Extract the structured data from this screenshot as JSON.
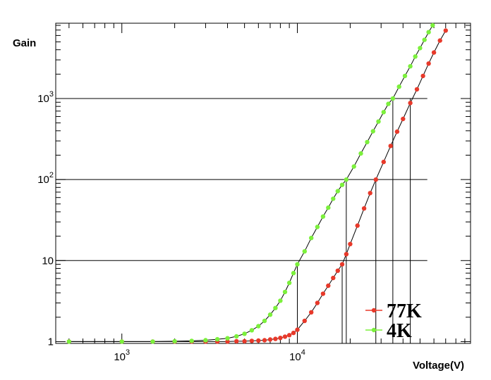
{
  "chart_data": {
    "type": "line",
    "xlabel": "Voltage(V)",
    "ylabel": "Gain",
    "xscale": "log",
    "yscale": "log",
    "xlim": [
      420,
      97000
    ],
    "ylim": [
      0.95,
      8500
    ],
    "grid": "y",
    "legend_position": "bottom-right",
    "x_ticks": [
      {
        "value": 1000,
        "base": "10",
        "exp": "3"
      },
      {
        "value": 10000,
        "base": "10",
        "exp": "4"
      }
    ],
    "y_ticks": [
      {
        "value": 1,
        "base": "1",
        "exp": ""
      },
      {
        "value": 10,
        "base": "10",
        "exp": ""
      },
      {
        "value": 100,
        "base": "10",
        "exp": "2"
      },
      {
        "value": 1000,
        "base": "10",
        "exp": "3"
      }
    ],
    "series": [
      {
        "name": "77K",
        "color": "#e8392a",
        "points": [
          [
            500,
            1.0
          ],
          [
            1000,
            1.0
          ],
          [
            1500,
            1.0
          ],
          [
            2000,
            1.0
          ],
          [
            2500,
            1.0
          ],
          [
            3000,
            1.0
          ],
          [
            3500,
            1.0
          ],
          [
            4000,
            1.0
          ],
          [
            4500,
            1.01
          ],
          [
            5000,
            1.01
          ],
          [
            5500,
            1.02
          ],
          [
            6000,
            1.03
          ],
          [
            6500,
            1.04
          ],
          [
            7000,
            1.06
          ],
          [
            7500,
            1.08
          ],
          [
            8000,
            1.11
          ],
          [
            8500,
            1.15
          ],
          [
            9000,
            1.2
          ],
          [
            9500,
            1.28
          ],
          [
            10000,
            1.4
          ],
          [
            11000,
            1.8
          ],
          [
            12000,
            2.3
          ],
          [
            13000,
            3.0
          ],
          [
            14000,
            3.9
          ],
          [
            15000,
            4.9
          ],
          [
            16000,
            6.1
          ],
          [
            17000,
            7.5
          ],
          [
            18000,
            9.0
          ],
          [
            19000,
            12.0
          ],
          [
            20000,
            16.0
          ],
          [
            22000,
            27.0
          ],
          [
            24000,
            44.0
          ],
          [
            26000,
            68.0
          ],
          [
            28000,
            100.0
          ],
          [
            31000,
            165.0
          ],
          [
            34000,
            260.0
          ],
          [
            37000,
            390.0
          ],
          [
            40000,
            560.0
          ],
          [
            44000,
            880.0
          ],
          [
            48000,
            1300.0
          ],
          [
            52000,
            1900.0
          ],
          [
            56000,
            2700.0
          ],
          [
            60000,
            3700.0
          ],
          [
            65000,
            5200.0
          ],
          [
            70000,
            6900.0
          ]
        ]
      },
      {
        "name": "4K",
        "color": "#7cf03c",
        "points": [
          [
            500,
            1.0
          ],
          [
            1000,
            1.0
          ],
          [
            1500,
            1.0
          ],
          [
            2000,
            1.01
          ],
          [
            2500,
            1.02
          ],
          [
            3000,
            1.04
          ],
          [
            3500,
            1.07
          ],
          [
            4000,
            1.1
          ],
          [
            4500,
            1.16
          ],
          [
            5000,
            1.25
          ],
          [
            5500,
            1.38
          ],
          [
            6000,
            1.55
          ],
          [
            6500,
            1.8
          ],
          [
            7000,
            2.15
          ],
          [
            7500,
            2.6
          ],
          [
            8000,
            3.2
          ],
          [
            8500,
            4.1
          ],
          [
            9000,
            5.3
          ],
          [
            9500,
            7.0
          ],
          [
            10000,
            9.0
          ],
          [
            11000,
            13.0
          ],
          [
            12000,
            19.0
          ],
          [
            13000,
            26.0
          ],
          [
            14000,
            35.0
          ],
          [
            15000,
            45.0
          ],
          [
            16000,
            58.0
          ],
          [
            17000,
            72.0
          ],
          [
            18000,
            86.0
          ],
          [
            19000,
            100.0
          ],
          [
            21000,
            145.0
          ],
          [
            23000,
            210.0
          ],
          [
            25000,
            290.0
          ],
          [
            27000,
            395.0
          ],
          [
            29000,
            520.0
          ],
          [
            31000,
            680.0
          ],
          [
            33000,
            860.0
          ],
          [
            35000,
            1000.0
          ],
          [
            38000,
            1400.0
          ],
          [
            41000,
            1900.0
          ],
          [
            44000,
            2500.0
          ],
          [
            47000,
            3300.0
          ],
          [
            50000,
            4200.0
          ],
          [
            53000,
            5300.0
          ],
          [
            56000,
            6600.0
          ],
          [
            59000,
            8000.0
          ]
        ]
      }
    ],
    "reference_lines": [
      {
        "x": 10000,
        "y": 9.0
      },
      {
        "x": 18000,
        "y": 9.0
      },
      {
        "x": 19000,
        "y": 100.0
      },
      {
        "x": 28000,
        "y": 100.0
      },
      {
        "x": 35000,
        "y": 1000.0
      },
      {
        "x": 44000,
        "y": 1000.0
      }
    ]
  }
}
